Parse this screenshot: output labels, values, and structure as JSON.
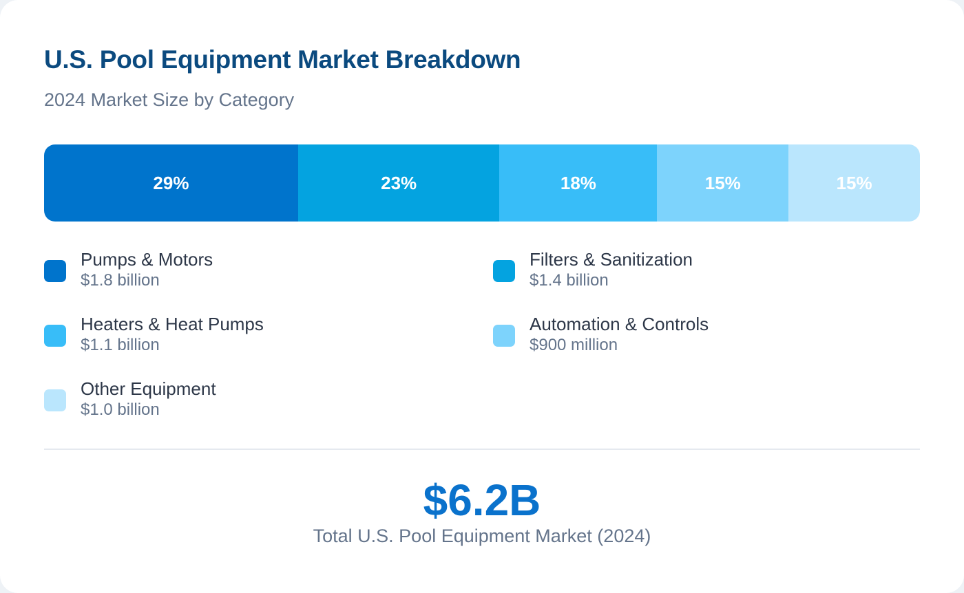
{
  "chart_data": {
    "type": "bar",
    "orientation": "horizontal-stacked-100",
    "title": "U.S. Pool Equipment Market Breakdown",
    "subtitle": "2024 Market Size by Category",
    "categories": [
      "Pumps & Motors",
      "Filters & Sanitization",
      "Heaters & Heat Pumps",
      "Automation & Controls",
      "Other Equipment"
    ],
    "values": [
      29,
      23,
      18,
      15,
      15
    ],
    "labels": [
      "29%",
      "23%",
      "18%",
      "15%",
      "15%"
    ],
    "amounts": [
      "$1.8 billion",
      "$1.4 billion",
      "$1.1 billion",
      "$900 million",
      "$1.0 billion"
    ],
    "colors": [
      "#0074cc",
      "#04a3e0",
      "#38bdf8",
      "#7dd3fc",
      "#bae6fd"
    ],
    "legend_placement": "bottom",
    "grid": false
  },
  "summary": {
    "total": "$6.2B",
    "total_label": "Total U.S. Pool Equipment Market (2024)"
  }
}
